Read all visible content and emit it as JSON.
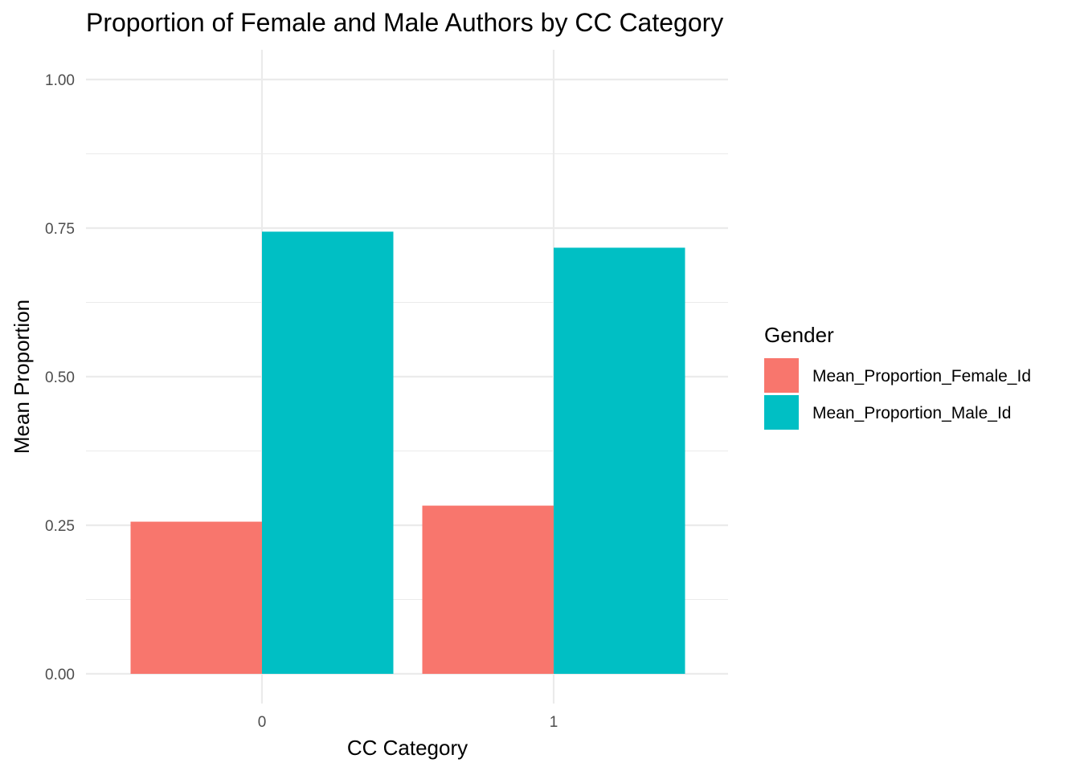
{
  "chart_data": {
    "type": "bar",
    "title": "Proportion of Female and Male Authors by CC Category",
    "xlabel": "CC Category",
    "ylabel": "Mean Proportion",
    "categories": [
      "0",
      "1"
    ],
    "series": [
      {
        "name": "Mean_Proportion_Female_Id",
        "values": [
          0.256,
          0.283
        ],
        "color": "#F8766D"
      },
      {
        "name": "Mean_Proportion_Male_Id",
        "values": [
          0.744,
          0.717
        ],
        "color": "#00BFC4"
      }
    ],
    "ylim": [
      0,
      1
    ],
    "yticks": [
      0,
      0.25,
      0.5,
      0.75,
      1
    ],
    "ytick_labels": [
      "0.00",
      "0.25",
      "0.50",
      "0.75",
      "1.00"
    ],
    "grid": true,
    "legend": {
      "title": "Gender",
      "placement": "right"
    }
  }
}
